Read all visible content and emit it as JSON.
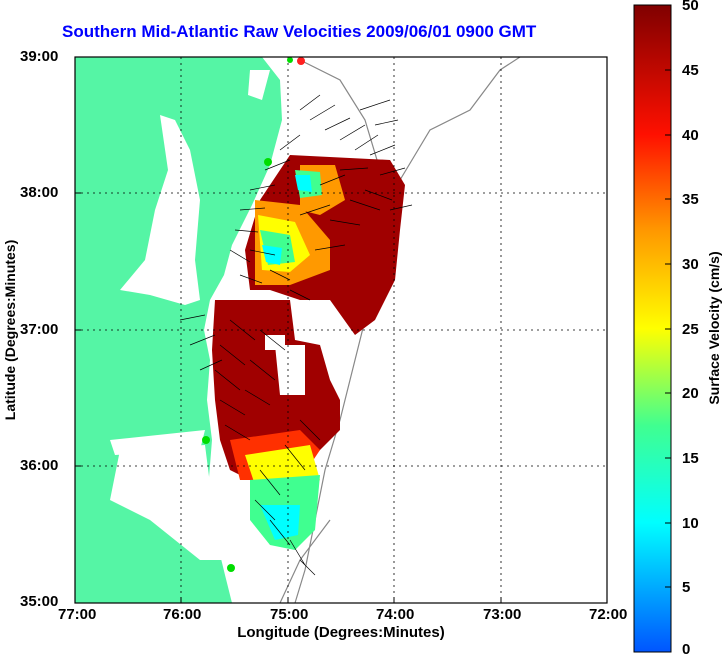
{
  "title": "Southern Mid-Atlantic Raw Velocities 2009/06/01 0900 GMT",
  "xlabel": "Longitude (Degrees:Minutes)",
  "ylabel": "Latitude (Degrees:Minutes)",
  "colorbar": {
    "label": "Surface Velocity (cm/s)",
    "ticks": [
      "0",
      "5",
      "10",
      "15",
      "20",
      "25",
      "30",
      "35",
      "40",
      "45",
      "50"
    ],
    "min": 0,
    "max": 50
  },
  "x_ticks": [
    "77:00",
    "76:00",
    "75:00",
    "74:00",
    "73:00",
    "72:00"
  ],
  "y_ticks": [
    "39:00",
    "38:00",
    "37:00",
    "36:00",
    "35:00"
  ],
  "colors": {
    "land": "#55f5a5",
    "title": "#0000ff",
    "frame": "#000000"
  }
}
